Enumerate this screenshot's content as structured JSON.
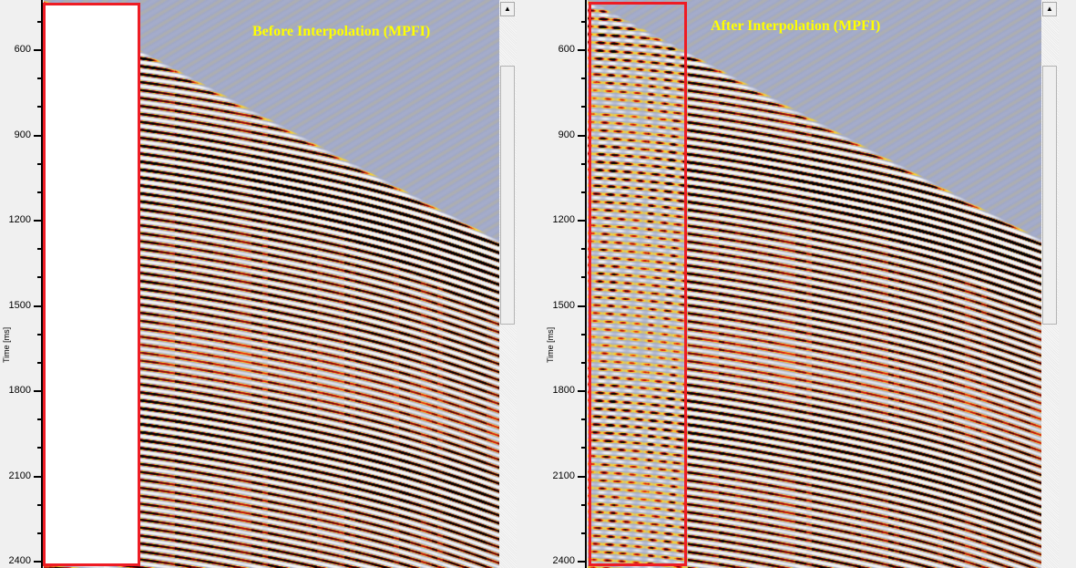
{
  "panels": [
    {
      "title": "Before Interpolation (MPFI)",
      "y_label": "Time [ms]",
      "y_ticks": [
        "600",
        "900",
        "1200",
        "1500",
        "1800",
        "2100",
        "2400"
      ],
      "highlight": "gap (blank traces)"
    },
    {
      "title": "After Interpolation (MPFI)",
      "y_label": "Time [ms]",
      "y_ticks": [
        "600",
        "900",
        "1200",
        "1500",
        "1800",
        "2100",
        "2400"
      ],
      "highlight": "interpolated traces"
    }
  ],
  "colors": {
    "highlight_box": "#ee1c24",
    "title": "#ffff00",
    "background": "#a0a8c8"
  },
  "icons": {
    "scroll_up": "triangle-up-icon"
  }
}
